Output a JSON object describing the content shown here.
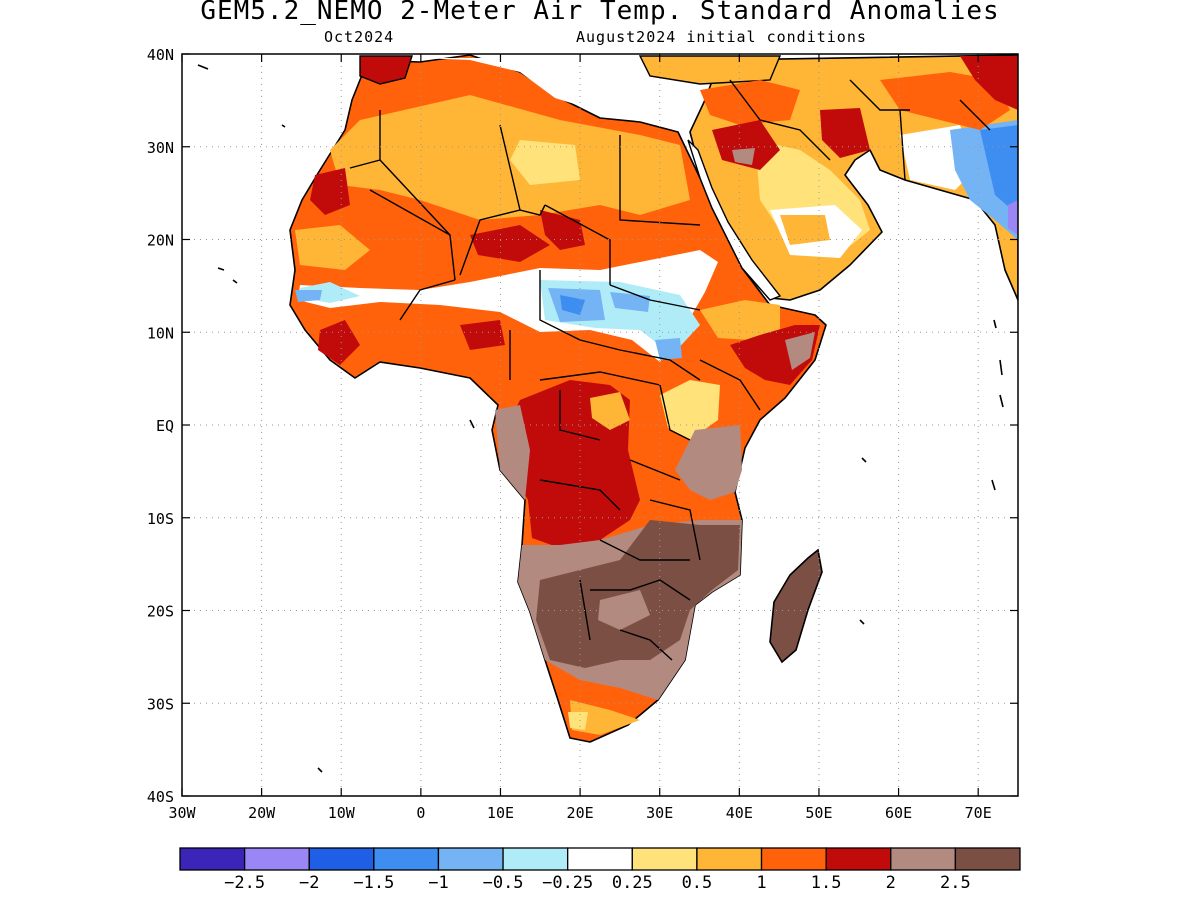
{
  "title": "GEM5.2_NEMO 2-Meter Air Temp. Standard Anomalies",
  "subtitle_left": "Oct2024",
  "subtitle_right": "August2024 initial conditions",
  "map": {
    "region": "Africa",
    "lon_range": [
      -30,
      75
    ],
    "lat_range": [
      -40,
      40
    ],
    "grid_lines": "dotted",
    "lat_ticks": [
      "40N",
      "30N",
      "20N",
      "10N",
      "EQ",
      "10S",
      "20S",
      "30S",
      "40S"
    ],
    "lon_ticks": [
      "30W",
      "20W",
      "10W",
      "0",
      "10E",
      "20E",
      "30E",
      "40E",
      "50E",
      "60E",
      "70E"
    ]
  },
  "colorbar": {
    "colors": [
      "#3a25b8",
      "#9a86f4",
      "#1f5fe6",
      "#3d8ef0",
      "#74b4f5",
      "#b0ecf8",
      "#ffffff",
      "#ffe27a",
      "#ffb535",
      "#ff620a",
      "#c10a0a",
      "#b38a80",
      "#7b4f44"
    ],
    "labels": [
      "−2.5",
      "−2",
      "−1.5",
      "−1",
      "−0.5",
      "−0.25",
      "0.25",
      "0.5",
      "1",
      "1.5",
      "2",
      "2.5"
    ]
  }
}
